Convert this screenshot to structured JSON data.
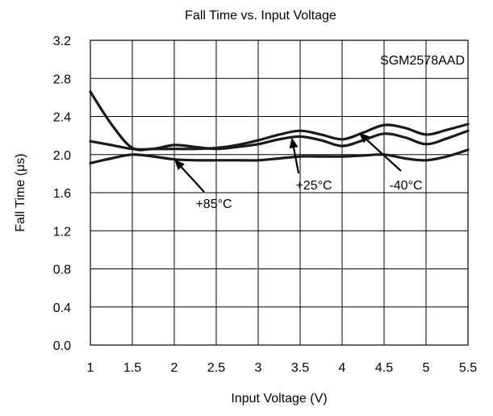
{
  "chart_data": {
    "type": "line",
    "title": "Fall Time vs. Input Voltage",
    "xlabel": "Input Voltage (V)",
    "ylabel": "Fall Time (μs)",
    "xlim": [
      1,
      5.5
    ],
    "ylim": [
      0,
      3.2
    ],
    "x_ticks": [
      "1",
      "1.5",
      "2",
      "2.5",
      "3",
      "3.5",
      "4",
      "4.5",
      "5",
      "5.5"
    ],
    "y_ticks": [
      "0.0",
      "0.4",
      "0.8",
      "1.2",
      "1.6",
      "2.0",
      "2.4",
      "2.8",
      "3.2"
    ],
    "grid": true,
    "device_label": "SGM2578AAD",
    "line_color": "#1a1a1a",
    "series": [
      {
        "name": "-40°C",
        "x": [
          1.0,
          1.25,
          1.5,
          1.75,
          2.0,
          2.25,
          2.5,
          2.75,
          3.0,
          3.25,
          3.5,
          3.75,
          4.0,
          4.25,
          4.5,
          4.75,
          5.0,
          5.25,
          5.5
        ],
        "values": [
          2.66,
          2.32,
          2.07,
          2.06,
          2.06,
          2.06,
          2.07,
          2.1,
          2.15,
          2.21,
          2.25,
          2.21,
          2.16,
          2.23,
          2.31,
          2.28,
          2.21,
          2.26,
          2.32
        ]
      },
      {
        "name": "+25°C",
        "x": [
          1.0,
          1.25,
          1.5,
          1.75,
          2.0,
          2.25,
          2.5,
          2.75,
          3.0,
          3.25,
          3.5,
          3.75,
          4.0,
          4.25,
          4.5,
          4.75,
          5.0,
          5.25,
          5.5
        ],
        "values": [
          2.14,
          2.1,
          2.06,
          2.06,
          2.1,
          2.08,
          2.06,
          2.08,
          2.11,
          2.16,
          2.19,
          2.15,
          2.09,
          2.15,
          2.22,
          2.18,
          2.11,
          2.17,
          2.25
        ]
      },
      {
        "name": "+85°C",
        "x": [
          1.0,
          1.25,
          1.5,
          1.75,
          2.0,
          2.25,
          2.5,
          2.75,
          3.0,
          3.25,
          3.5,
          3.75,
          4.0,
          4.25,
          4.5,
          4.75,
          5.0,
          5.25,
          5.5
        ],
        "values": [
          1.91,
          1.96,
          2.0,
          1.98,
          1.95,
          1.94,
          1.94,
          1.94,
          1.94,
          1.96,
          1.98,
          1.98,
          1.98,
          1.99,
          2.0,
          1.96,
          1.94,
          1.98,
          2.05
        ]
      }
    ],
    "annotations": [
      {
        "series": "+85°C",
        "text": "+85°C",
        "point": [
          2.0,
          1.95
        ]
      },
      {
        "series": "+25°C",
        "text": "+25°C",
        "point": [
          3.4,
          2.18
        ]
      },
      {
        "series": "-40°C",
        "text": "-40°C",
        "point": [
          4.2,
          2.23
        ]
      }
    ]
  }
}
